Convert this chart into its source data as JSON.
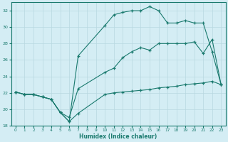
{
  "xlabel": "Humidex (Indice chaleur)",
  "bg_color": "#d4edf4",
  "grid_color": "#b8d8e0",
  "line_color": "#1a7a6e",
  "xlim": [
    -0.5,
    23.5
  ],
  "ylim": [
    18,
    33
  ],
  "yticks": [
    18,
    20,
    22,
    24,
    26,
    28,
    30,
    32
  ],
  "xticks": [
    0,
    1,
    2,
    3,
    4,
    5,
    6,
    7,
    8,
    9,
    10,
    11,
    12,
    13,
    14,
    15,
    16,
    17,
    18,
    19,
    20,
    21,
    22,
    23
  ],
  "line1_x": [
    0,
    1,
    2,
    3,
    4,
    5,
    6,
    7,
    10,
    11,
    12,
    13,
    14,
    15,
    16,
    17,
    18,
    19,
    20,
    21,
    22,
    23
  ],
  "line1_y": [
    22.1,
    21.8,
    21.8,
    21.5,
    21.2,
    19.6,
    18.5,
    19.5,
    21.8,
    22.0,
    22.1,
    22.2,
    22.3,
    22.4,
    22.6,
    22.7,
    22.8,
    23.0,
    23.1,
    23.2,
    23.4,
    23.0
  ],
  "line2_x": [
    0,
    1,
    2,
    3,
    4,
    5,
    6,
    7,
    10,
    11,
    12,
    13,
    14,
    15,
    16,
    17,
    18,
    19,
    20,
    21,
    22,
    23
  ],
  "line2_y": [
    22.1,
    21.8,
    21.8,
    21.5,
    21.2,
    19.6,
    19.0,
    22.5,
    24.5,
    25.0,
    26.3,
    27.0,
    27.5,
    27.2,
    28.0,
    28.0,
    28.0,
    28.0,
    28.2,
    26.8,
    28.5,
    23.0
  ],
  "line3_x": [
    0,
    1,
    2,
    3,
    4,
    5,
    6,
    7,
    10,
    11,
    12,
    13,
    14,
    15,
    16,
    17,
    18,
    19,
    20,
    21,
    22,
    23
  ],
  "line3_y": [
    22.1,
    21.8,
    21.8,
    21.5,
    21.2,
    19.6,
    18.5,
    26.5,
    30.2,
    31.5,
    31.8,
    32.0,
    32.0,
    32.5,
    32.0,
    30.5,
    30.5,
    30.8,
    30.5,
    30.5,
    27.0,
    23.0
  ]
}
